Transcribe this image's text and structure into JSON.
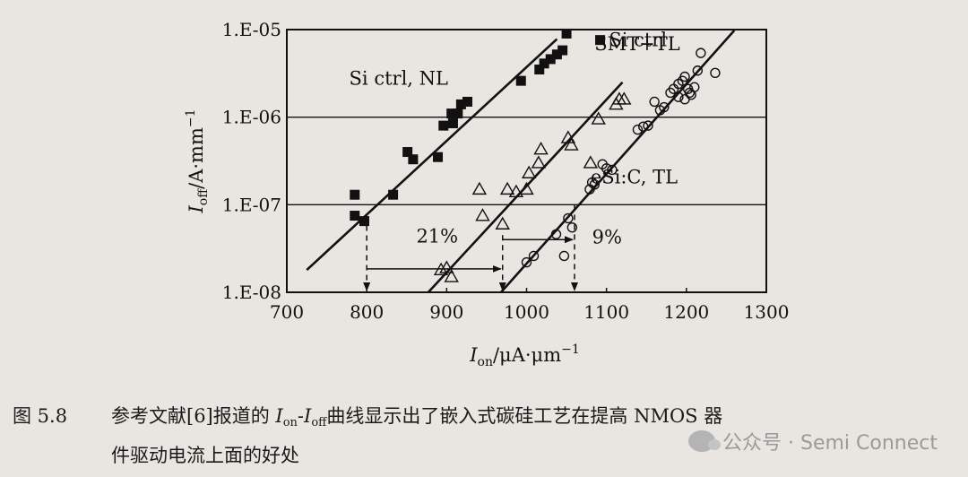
{
  "chart_data": {
    "type": "scatter",
    "x_scale": "linear",
    "y_scale": "log",
    "xlim": [
      700,
      1300
    ],
    "ylim": [
      1e-08,
      1e-05
    ],
    "x_ticks": [
      "700",
      "800",
      "900",
      "1000",
      "1100",
      "1200",
      "1300"
    ],
    "y_ticks": [
      "1.E-08",
      "1.E-07",
      "1.E-06",
      "1.E-05"
    ],
    "grid": "horizontal lines at 1.E-07 and 1.E-06",
    "xlabel_main": "I",
    "xlabel_sub": "on",
    "xlabel_unit": "/μA·μm",
    "xlabel_sup": "−1",
    "ylabel_main": "I",
    "ylabel_sub": "off",
    "ylabel_unit": "/A·mm",
    "ylabel_sup": "−1",
    "series": [
      {
        "name": "Si ctrl",
        "label": "Si ctrl, NL",
        "marker": "filled-square",
        "points": [
          [
            785,
            1.3e-07
          ],
          [
            785,
            7.5e-08
          ],
          [
            797,
            6.5e-08
          ],
          [
            833,
            1.3e-07
          ],
          [
            851,
            4e-07
          ],
          [
            858,
            3.3e-07
          ],
          [
            889,
            3.5e-07
          ],
          [
            896,
            8e-07
          ],
          [
            906,
            1.1e-06
          ],
          [
            908,
            8.5e-07
          ],
          [
            914,
            1.1e-06
          ],
          [
            918,
            1.4e-06
          ],
          [
            926,
            1.5e-06
          ],
          [
            993,
            2.6e-06
          ],
          [
            1016,
            3.5e-06
          ],
          [
            1022,
            4.1e-06
          ],
          [
            1030,
            4.6e-06
          ],
          [
            1038,
            5.2e-06
          ],
          [
            1045,
            5.8e-06
          ],
          [
            1050,
            9e-06
          ]
        ],
        "fit": [
          [
            725,
            1.8e-08
          ],
          [
            1038,
            7.8e-06
          ]
        ]
      },
      {
        "name": "SMT+TL",
        "label": "SMT+TL",
        "marker": "open-triangle",
        "points": [
          [
            893,
            1.8e-08
          ],
          [
            900,
            1.9e-08
          ],
          [
            906,
            1.5e-08
          ],
          [
            941,
            1.5e-07
          ],
          [
            945,
            7.5e-08
          ],
          [
            970,
            6e-08
          ],
          [
            976,
            1.5e-07
          ],
          [
            987,
            1.4e-07
          ],
          [
            1000,
            1.5e-07
          ],
          [
            1003,
            2.3e-07
          ],
          [
            1015,
            3e-07
          ],
          [
            1018,
            4.3e-07
          ],
          [
            1052,
            5.8e-07
          ],
          [
            1056,
            4.8e-07
          ],
          [
            1080,
            3e-07
          ],
          [
            1090,
            9.5e-07
          ],
          [
            1112,
            1.4e-06
          ],
          [
            1116,
            1.6e-06
          ],
          [
            1122,
            1.6e-06
          ]
        ],
        "fit": [
          [
            877,
            1e-08
          ],
          [
            1120,
            2.5e-06
          ]
        ]
      },
      {
        "name": "eSi:C, TL",
        "label": "eSi:C, TL",
        "marker": "open-circle",
        "points": [
          [
            1000,
            2.2e-08
          ],
          [
            1009,
            2.6e-08
          ],
          [
            1037,
            4.6e-08
          ],
          [
            1047,
            2.6e-08
          ],
          [
            1052,
            7e-08
          ],
          [
            1057,
            5.5e-08
          ],
          [
            1079,
            1.5e-07
          ],
          [
            1082,
            1.8e-07
          ],
          [
            1085,
            1.7e-07
          ],
          [
            1095,
            2.9e-07
          ],
          [
            1100,
            2.6e-07
          ],
          [
            1107,
            2.5e-07
          ],
          [
            1139,
            7.2e-07
          ],
          [
            1146,
            7.8e-07
          ],
          [
            1152,
            8e-07
          ],
          [
            1160,
            1.5e-06
          ],
          [
            1167,
            1.2e-06
          ],
          [
            1172,
            1.3e-06
          ],
          [
            1180,
            1.9e-06
          ],
          [
            1184,
            2.1e-06
          ],
          [
            1190,
            2.4e-06
          ],
          [
            1195,
            2.6e-06
          ],
          [
            1198,
            2.9e-06
          ],
          [
            1202,
            2.1e-06
          ],
          [
            1206,
            1.8e-06
          ],
          [
            1210,
            2.2e-06
          ],
          [
            1214,
            3.4e-06
          ],
          [
            1218,
            5.4e-06
          ],
          [
            1236,
            3.2e-06
          ],
          [
            1190,
            1.7e-06
          ],
          [
            1198,
            1.6e-06
          ],
          [
            1204,
            1.9e-06
          ]
        ],
        "fit": [
          [
            968,
            1e-08
          ],
          [
            1260,
            9.8e-06
          ]
        ]
      }
    ],
    "guides": {
      "dashed_drops": [
        {
          "x": 800,
          "from_y": 7.5e-08,
          "to_y": 1.05e-08
        },
        {
          "x": 970,
          "from_y": 4.5e-08,
          "to_y": 1.05e-08
        },
        {
          "x": 1060,
          "from_y": 1e-07,
          "to_y": 1.05e-08
        }
      ],
      "arrows": [
        {
          "label": "21%",
          "from_x": 800,
          "to_x": 970,
          "y": 1.85e-08
        },
        {
          "label": "9%",
          "from_x": 970,
          "to_x": 1060,
          "y": 4e-08
        }
      ]
    },
    "annotations": [
      {
        "text": "Si ctrl, NL",
        "x": 778,
        "y": 2.35e-06
      },
      {
        "text": "SMT+TL",
        "x": 1085,
        "y": 5.8e-06
      },
      {
        "text": "eSi:C, TL",
        "x": 1080,
        "y": 1.75e-07
      },
      {
        "text": "21%",
        "x": 862,
        "y": 3.7e-08
      },
      {
        "text": "9%",
        "x": 1082,
        "y": 3.6e-08
      }
    ],
    "legend": {
      "text": "Si ctrl",
      "marker": "filled-square",
      "placement": "top-right"
    }
  },
  "caption": {
    "number": "图 5.8",
    "part1": "参考文献[6]报道的 ",
    "ion_main": "I",
    "ion_sub": "on",
    "dash": "-",
    "ioff_main": "I",
    "ioff_sub": "off",
    "part2": "曲线显示出了嵌入式碳硅工艺在提高 NMOS 器",
    "line2": "件驱动电流上面的好处"
  },
  "watermark": {
    "text": "公众号 · Semi Connect"
  },
  "colors": {
    "ink": "#111111",
    "paper": "#e9e6e1",
    "watermark": "#9a9a9a"
  }
}
